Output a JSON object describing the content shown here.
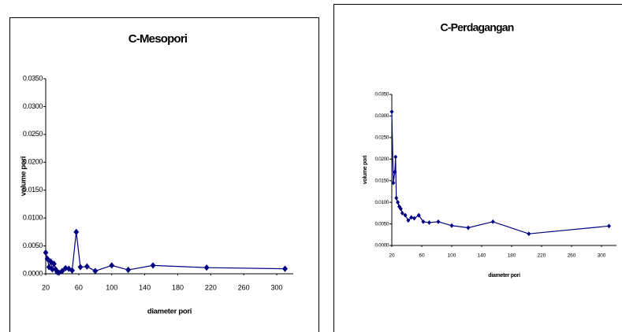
{
  "chart_data": [
    {
      "type": "line",
      "title": "C-Mesopori",
      "x_label": "diameter pori",
      "y_label": "volume pori",
      "color": "#000080",
      "x": [
        20,
        22,
        24,
        26,
        28,
        30,
        32,
        34,
        36,
        40,
        44,
        48,
        52,
        57,
        62,
        70,
        80,
        100,
        120,
        150,
        215,
        310
      ],
      "values": [
        0.0038,
        0.0027,
        0.0012,
        0.0022,
        0.0008,
        0.0018,
        0.0008,
        0.0003,
        0.0002,
        0.0005,
        0.001,
        0.0009,
        0.0006,
        0.0075,
        0.0012,
        0.0013,
        0.0005,
        0.0015,
        0.0007,
        0.0015,
        0.0011,
        0.0009
      ],
      "xlim": [
        20,
        320
      ],
      "xticks": [
        20,
        60,
        100,
        140,
        180,
        220,
        260,
        300
      ],
      "ylim": [
        0,
        0.035
      ],
      "yticks": [
        {
          "value": 0,
          "label": "0.0000"
        },
        {
          "value": 0.005,
          "label": "0.0050"
        },
        {
          "value": 0.01,
          "label": "0.0100"
        },
        {
          "value": 0.015,
          "label": "0.0150"
        },
        {
          "value": 0.02,
          "label": "0.0200"
        },
        {
          "value": 0.025,
          "label": "0.0250"
        },
        {
          "value": 0.03,
          "label": "0.0300"
        },
        {
          "value": 0.035,
          "label": "0.0350"
        }
      ]
    },
    {
      "type": "line",
      "title": "C-Perdagangan",
      "x_label": "diameter pori",
      "y_label": "volume pori",
      "color": "#000080",
      "x": [
        20,
        22,
        24,
        25,
        26,
        28,
        30,
        32,
        34,
        38,
        42,
        46,
        50,
        56,
        62,
        70,
        82,
        100,
        122,
        155,
        203,
        310
      ],
      "values": [
        0.031,
        0.0145,
        0.017,
        0.0205,
        0.011,
        0.01,
        0.009,
        0.0085,
        0.0075,
        0.007,
        0.0058,
        0.0065,
        0.0063,
        0.007,
        0.0055,
        0.0053,
        0.0055,
        0.0046,
        0.0041,
        0.0055,
        0.0027,
        0.0045
      ],
      "xlim": [
        20,
        320
      ],
      "xticks": [
        20,
        60,
        100,
        140,
        180,
        220,
        260,
        300
      ],
      "ylim": [
        0,
        0.035
      ],
      "yticks": [
        {
          "value": 0,
          "label": "0.0000"
        },
        {
          "value": 0.005,
          "label": "0.0050"
        },
        {
          "value": 0.01,
          "label": "0.0100"
        },
        {
          "value": 0.015,
          "label": "0.0150"
        },
        {
          "value": 0.02,
          "label": "0.0200"
        },
        {
          "value": 0.025,
          "label": "0.0250"
        },
        {
          "value": 0.03,
          "label": "0.0300"
        },
        {
          "value": 0.035,
          "label": "0.0350"
        }
      ]
    }
  ]
}
